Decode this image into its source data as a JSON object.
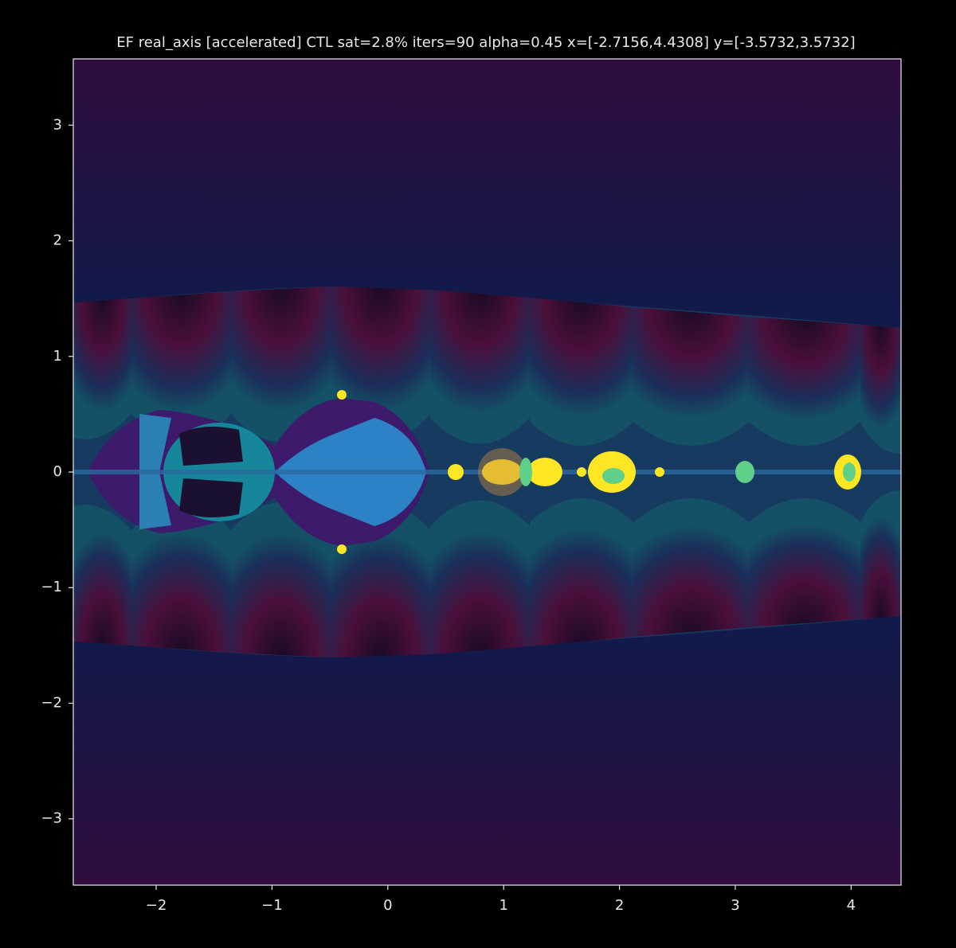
{
  "chart_data": {
    "type": "image",
    "title": "EF real_axis   [accelerated]   CTL sat=2.8%   iters=90   alpha=0.45   x=[-2.7156,4.4308] y=[-3.5732,3.5732]",
    "xlim": [
      -2.7156,
      4.4308
    ],
    "ylim": [
      -3.5732,
      3.5732
    ],
    "xticks": [
      {
        "value": -2,
        "label": "−2"
      },
      {
        "value": -1,
        "label": "−1"
      },
      0,
      1,
      2,
      3,
      4
    ],
    "yticks": [
      {
        "value": -3,
        "label": "−3"
      },
      {
        "value": -2,
        "label": "−2"
      },
      {
        "value": -1,
        "label": "−1"
      },
      0,
      1,
      2,
      3
    ]
  }
}
